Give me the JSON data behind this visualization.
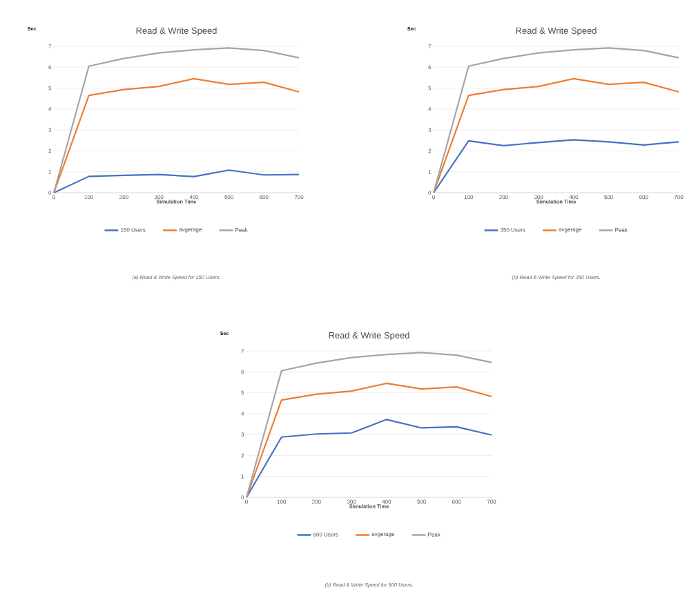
{
  "chart_data": [
    {
      "type": "line",
      "title": "Read & Write Speed",
      "ylabel": "Sec",
      "xlabel": "Simulation Time",
      "x": [
        0,
        100,
        200,
        300,
        400,
        500,
        600,
        700
      ],
      "xlim": [
        0,
        700
      ],
      "xticks": [
        0,
        100,
        200,
        300,
        400,
        500,
        600,
        700
      ],
      "ylim": [
        0,
        7
      ],
      "yticks": [
        0,
        1,
        2,
        3,
        4,
        5,
        6,
        7
      ],
      "grid": "y",
      "legend": "bottom",
      "marker": "none",
      "line_style": "solid",
      "series": [
        {
          "name": "150 Users",
          "color": "#4472c4",
          "values": [
            0,
            0.78,
            0.83,
            0.87,
            0.77,
            1.08,
            0.85,
            0.87
          ]
        },
        {
          "name": "avgerage",
          "color": "#ed7d31",
          "values": [
            0,
            4.65,
            4.93,
            5.08,
            5.45,
            5.18,
            5.28,
            4.82
          ]
        },
        {
          "name": "Peak",
          "color": "#a5a5a5",
          "values": [
            0,
            6.05,
            6.42,
            6.68,
            6.83,
            6.92,
            6.8,
            6.45
          ]
        }
      ],
      "annotations": [
        "(a) Read & Write Speed for 150 Users."
      ]
    },
    {
      "type": "line",
      "title": "Read & Write Speed",
      "ylabel": "Sec",
      "xlabel": "Simulation Time",
      "x": [
        0,
        100,
        200,
        300,
        400,
        500,
        600,
        700
      ],
      "xlim": [
        0,
        700
      ],
      "xticks": [
        0,
        100,
        200,
        300,
        400,
        500,
        600,
        700
      ],
      "ylim": [
        0,
        7
      ],
      "yticks": [
        0,
        1,
        2,
        3,
        4,
        5,
        6,
        7
      ],
      "grid": "y",
      "legend": "bottom",
      "marker": "none",
      "line_style": "solid",
      "series": [
        {
          "name": "350 Users",
          "color": "#4472c4",
          "values": [
            0,
            2.48,
            2.25,
            2.4,
            2.53,
            2.43,
            2.28,
            2.43
          ]
        },
        {
          "name": "avgerage",
          "color": "#ed7d31",
          "values": [
            0,
            4.65,
            4.93,
            5.08,
            5.45,
            5.18,
            5.28,
            4.82
          ]
        },
        {
          "name": "Peak",
          "color": "#a5a5a5",
          "values": [
            0,
            6.05,
            6.42,
            6.68,
            6.83,
            6.92,
            6.8,
            6.45
          ]
        }
      ],
      "annotations": [
        "(b) Read & Write Speed for 350 Users."
      ]
    },
    {
      "type": "line",
      "title": "Read & Write Speed",
      "ylabel": "Sec",
      "xlabel": "Simulation Time",
      "x": [
        0,
        100,
        200,
        300,
        400,
        500,
        600,
        700
      ],
      "xlim": [
        0,
        700
      ],
      "xticks": [
        0,
        100,
        200,
        300,
        400,
        500,
        600,
        700
      ],
      "ylim": [
        0,
        7
      ],
      "yticks": [
        0,
        1,
        2,
        3,
        4,
        5,
        6,
        7
      ],
      "grid": "y",
      "legend": "bottom",
      "marker": "none",
      "line_style": "solid",
      "series": [
        {
          "name": "500 Users",
          "color": "#4472c4",
          "values": [
            0,
            2.88,
            3.03,
            3.08,
            3.72,
            3.32,
            3.37,
            2.98
          ]
        },
        {
          "name": "avgerage",
          "color": "#ed7d31",
          "values": [
            0,
            4.65,
            4.93,
            5.08,
            5.45,
            5.18,
            5.28,
            4.82
          ]
        },
        {
          "name": "Peak",
          "color": "#a5a5a5",
          "values": [
            0,
            6.05,
            6.42,
            6.68,
            6.83,
            6.92,
            6.8,
            6.45
          ]
        }
      ],
      "annotations": [
        "(b) Read & Write Speed for 500 Users."
      ]
    }
  ]
}
